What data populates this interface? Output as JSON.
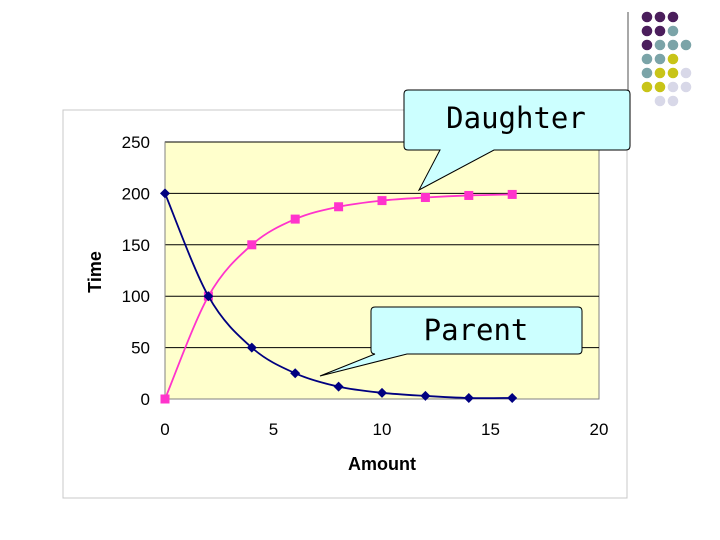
{
  "chart_data": {
    "type": "line",
    "xlabel": "Amount",
    "ylabel": "Time",
    "xlim": [
      0,
      20
    ],
    "ylim": [
      0,
      250
    ],
    "x_ticks": [
      0,
      5,
      10,
      15,
      20
    ],
    "y_ticks": [
      0,
      50,
      100,
      150,
      200,
      250
    ],
    "grid": "horizontal",
    "plot_background": "#ffffcc",
    "series": [
      {
        "name": "Daughter",
        "color": "#ff33cc",
        "marker": "square",
        "points": [
          [
            0,
            0
          ],
          [
            2,
            100
          ],
          [
            4,
            150
          ],
          [
            6,
            175
          ],
          [
            8,
            187
          ],
          [
            10,
            193
          ],
          [
            12,
            196
          ],
          [
            14,
            198
          ],
          [
            16,
            199
          ]
        ]
      },
      {
        "name": "Parent",
        "color": "#000080",
        "marker": "diamond",
        "points": [
          [
            0,
            200
          ],
          [
            2,
            100
          ],
          [
            4,
            50
          ],
          [
            6,
            25
          ],
          [
            8,
            12
          ],
          [
            10,
            6
          ],
          [
            12,
            3
          ],
          [
            14,
            1
          ],
          [
            16,
            1
          ]
        ]
      }
    ]
  },
  "callouts": {
    "daughter": "Daughter",
    "parent": "Parent"
  },
  "decor": {
    "dot_colors": [
      "#4b1e5c",
      "#7ba4a8",
      "#c8c418",
      "#d8d8e8"
    ]
  }
}
